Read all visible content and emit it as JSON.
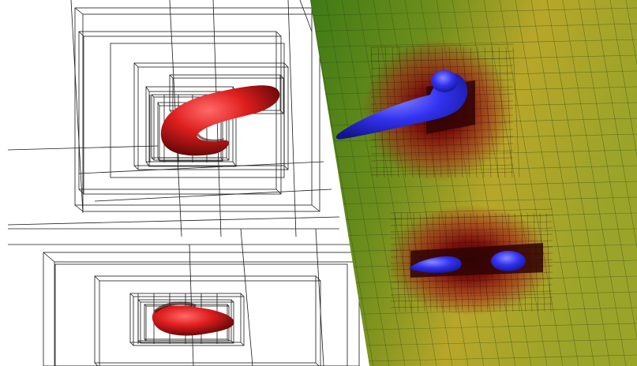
{
  "scene": {
    "kind": "amr-mesh-visualization",
    "background": "#ffffff",
    "wireframe_color": "#1a1a1a",
    "slice_plane": {
      "gradient_colors": [
        "#3e7a16",
        "#8a9a1e",
        "#c4a82a",
        "#a8a82a"
      ],
      "grid_color": "#2e4a12"
    },
    "heat_color": "#8b0a0a",
    "objects": [
      {
        "id": "upper-red-isosurface",
        "color": "#d61a1a"
      },
      {
        "id": "lower-red-isosurface",
        "color": "#d61a1a"
      },
      {
        "id": "upper-blue-isosurface",
        "color": "#2a2ae6"
      },
      {
        "id": "lower-blue-isosurface-left",
        "color": "#2a2ae6"
      },
      {
        "id": "lower-blue-isosurface-right",
        "color": "#2a2ae6"
      }
    ]
  }
}
